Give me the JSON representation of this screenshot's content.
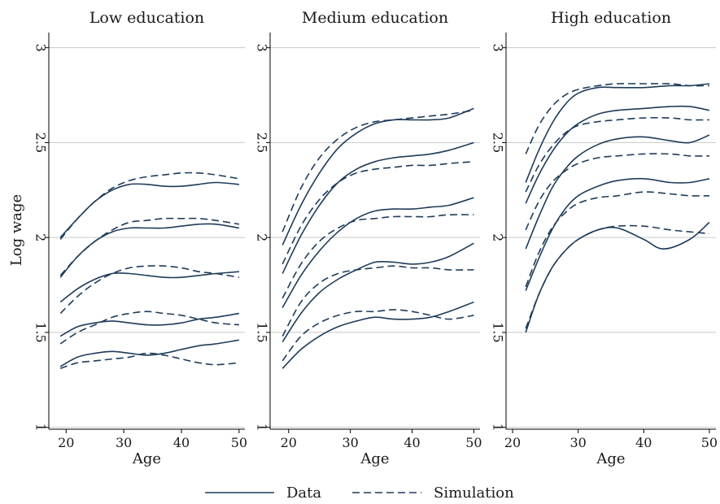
{
  "chart_data": {
    "type": "line",
    "ylabel": "Log wage",
    "xlabel": "Age",
    "ylim": [
      1,
      3
    ],
    "yticks": [
      1,
      1.5,
      2,
      2.5,
      3
    ],
    "ytick_labels": [
      "1",
      "1.5",
      "2",
      "2.5",
      "3"
    ],
    "grid": true,
    "legend": {
      "position": "bottom",
      "entries": [
        {
          "label": "Data",
          "style": "solid"
        },
        {
          "label": "Simulation",
          "style": "dashed"
        }
      ]
    },
    "line_color": "#1f3c5a",
    "panels": [
      {
        "title": "Low education",
        "xlim": [
          17,
          51
        ],
        "xticks": [
          20,
          30,
          40,
          50
        ],
        "xtick_labels": [
          "20",
          "30",
          "40",
          "50"
        ],
        "series": [
          {
            "style": "solid",
            "x": [
              19,
              22,
              25,
              28,
              31,
              34,
              37,
              40,
              43,
              46,
              50
            ],
            "y": [
              2.0,
              2.1,
              2.19,
              2.25,
              2.28,
              2.28,
              2.27,
              2.27,
              2.28,
              2.29,
              2.28
            ]
          },
          {
            "style": "dashed",
            "x": [
              19,
              22,
              25,
              28,
              31,
              34,
              37,
              40,
              43,
              46,
              50
            ],
            "y": [
              1.99,
              2.1,
              2.19,
              2.26,
              2.3,
              2.32,
              2.33,
              2.34,
              2.34,
              2.33,
              2.31
            ]
          },
          {
            "style": "solid",
            "x": [
              19,
              22,
              25,
              28,
              31,
              34,
              37,
              40,
              43,
              46,
              50
            ],
            "y": [
              1.79,
              1.9,
              1.98,
              2.03,
              2.05,
              2.05,
              2.05,
              2.06,
              2.07,
              2.07,
              2.05
            ]
          },
          {
            "style": "dashed",
            "x": [
              19,
              22,
              25,
              28,
              31,
              34,
              37,
              40,
              43,
              46,
              50
            ],
            "y": [
              1.8,
              1.9,
              1.98,
              2.04,
              2.08,
              2.09,
              2.1,
              2.1,
              2.1,
              2.09,
              2.07
            ]
          },
          {
            "style": "solid",
            "x": [
              19,
              22,
              25,
              28,
              31,
              34,
              37,
              40,
              43,
              46,
              50
            ],
            "y": [
              1.66,
              1.73,
              1.78,
              1.81,
              1.81,
              1.8,
              1.79,
              1.79,
              1.8,
              1.81,
              1.82
            ]
          },
          {
            "style": "dashed",
            "x": [
              19,
              22,
              25,
              28,
              31,
              34,
              37,
              40,
              43,
              46,
              50
            ],
            "y": [
              1.6,
              1.69,
              1.76,
              1.81,
              1.84,
              1.85,
              1.85,
              1.84,
              1.82,
              1.81,
              1.79
            ]
          },
          {
            "style": "solid",
            "x": [
              19,
              22,
              25,
              28,
              31,
              34,
              37,
              40,
              43,
              46,
              50
            ],
            "y": [
              1.48,
              1.53,
              1.55,
              1.56,
              1.55,
              1.54,
              1.54,
              1.55,
              1.57,
              1.58,
              1.6
            ]
          },
          {
            "style": "dashed",
            "x": [
              19,
              22,
              25,
              28,
              31,
              34,
              37,
              40,
              43,
              46,
              50
            ],
            "y": [
              1.44,
              1.5,
              1.54,
              1.58,
              1.6,
              1.61,
              1.6,
              1.59,
              1.57,
              1.55,
              1.54
            ]
          },
          {
            "style": "solid",
            "x": [
              19,
              22,
              25,
              28,
              31,
              34,
              37,
              40,
              43,
              46,
              50
            ],
            "y": [
              1.32,
              1.37,
              1.39,
              1.4,
              1.39,
              1.38,
              1.39,
              1.41,
              1.43,
              1.44,
              1.46
            ]
          },
          {
            "style": "dashed",
            "x": [
              19,
              22,
              25,
              28,
              31,
              34,
              37,
              40,
              43,
              46,
              50
            ],
            "y": [
              1.31,
              1.34,
              1.35,
              1.36,
              1.37,
              1.39,
              1.38,
              1.36,
              1.34,
              1.33,
              1.34
            ]
          }
        ]
      },
      {
        "title": "Medium education",
        "xlim": [
          17,
          51
        ],
        "xticks": [
          20,
          30,
          40,
          50
        ],
        "xtick_labels": [
          "20",
          "30",
          "40",
          "50"
        ],
        "series": [
          {
            "style": "solid",
            "x": [
              19,
              22,
              25,
              28,
              31,
              34,
              37,
              40,
              43,
              46,
              50
            ],
            "y": [
              1.96,
              2.17,
              2.34,
              2.47,
              2.55,
              2.6,
              2.62,
              2.62,
              2.62,
              2.63,
              2.68
            ]
          },
          {
            "style": "dashed",
            "x": [
              19,
              22,
              25,
              28,
              31,
              34,
              37,
              40,
              43,
              46,
              50
            ],
            "y": [
              2.03,
              2.26,
              2.42,
              2.52,
              2.58,
              2.61,
              2.62,
              2.63,
              2.64,
              2.65,
              2.67
            ]
          },
          {
            "style": "solid",
            "x": [
              19,
              22,
              25,
              28,
              31,
              34,
              37,
              40,
              43,
              46,
              50
            ],
            "y": [
              1.81,
              2.01,
              2.17,
              2.29,
              2.36,
              2.4,
              2.42,
              2.43,
              2.44,
              2.46,
              2.5
            ]
          },
          {
            "style": "dashed",
            "x": [
              19,
              22,
              25,
              28,
              31,
              34,
              37,
              40,
              43,
              46,
              50
            ],
            "y": [
              1.86,
              2.06,
              2.2,
              2.29,
              2.34,
              2.36,
              2.37,
              2.38,
              2.38,
              2.39,
              2.4
            ]
          },
          {
            "style": "solid",
            "x": [
              19,
              22,
              25,
              28,
              31,
              34,
              37,
              40,
              43,
              46,
              50
            ],
            "y": [
              1.63,
              1.8,
              1.93,
              2.03,
              2.1,
              2.14,
              2.15,
              2.15,
              2.16,
              2.17,
              2.21
            ]
          },
          {
            "style": "dashed",
            "x": [
              19,
              22,
              25,
              28,
              31,
              34,
              37,
              40,
              43,
              46,
              50
            ],
            "y": [
              1.68,
              1.86,
              1.98,
              2.05,
              2.09,
              2.1,
              2.11,
              2.11,
              2.11,
              2.12,
              2.12
            ]
          },
          {
            "style": "solid",
            "x": [
              19,
              22,
              25,
              28,
              31,
              34,
              37,
              40,
              43,
              46,
              50
            ],
            "y": [
              1.45,
              1.6,
              1.71,
              1.78,
              1.83,
              1.87,
              1.87,
              1.86,
              1.87,
              1.9,
              1.97
            ]
          },
          {
            "style": "dashed",
            "x": [
              19,
              22,
              25,
              28,
              31,
              34,
              37,
              40,
              43,
              46,
              50
            ],
            "y": [
              1.48,
              1.66,
              1.76,
              1.81,
              1.83,
              1.84,
              1.85,
              1.84,
              1.84,
              1.83,
              1.83
            ]
          },
          {
            "style": "solid",
            "x": [
              19,
              22,
              25,
              28,
              31,
              34,
              37,
              40,
              43,
              46,
              50
            ],
            "y": [
              1.31,
              1.41,
              1.48,
              1.53,
              1.56,
              1.58,
              1.57,
              1.57,
              1.58,
              1.61,
              1.66
            ]
          },
          {
            "style": "dashed",
            "x": [
              19,
              22,
              25,
              28,
              31,
              34,
              37,
              40,
              43,
              46,
              50
            ],
            "y": [
              1.35,
              1.48,
              1.55,
              1.59,
              1.61,
              1.61,
              1.62,
              1.61,
              1.59,
              1.57,
              1.59
            ]
          }
        ]
      },
      {
        "title": "High education",
        "xlim": [
          19,
          51
        ],
        "xticks": [
          20,
          30,
          40,
          50
        ],
        "xtick_labels": [
          "20",
          "30",
          "40",
          "50"
        ],
        "series": [
          {
            "style": "solid",
            "x": [
              22,
              24,
              26,
              28,
              30,
              33,
              36,
              40,
              44,
              47,
              50
            ],
            "y": [
              2.29,
              2.46,
              2.6,
              2.7,
              2.76,
              2.79,
              2.79,
              2.79,
              2.8,
              2.8,
              2.81
            ]
          },
          {
            "style": "dashed",
            "x": [
              22,
              24,
              26,
              28,
              30,
              33,
              36,
              40,
              44,
              47,
              50
            ],
            "y": [
              2.44,
              2.59,
              2.69,
              2.75,
              2.78,
              2.8,
              2.81,
              2.81,
              2.81,
              2.8,
              2.8
            ]
          },
          {
            "style": "solid",
            "x": [
              22,
              24,
              26,
              28,
              30,
              33,
              36,
              40,
              44,
              47,
              50
            ],
            "y": [
              2.18,
              2.33,
              2.45,
              2.54,
              2.6,
              2.65,
              2.67,
              2.68,
              2.69,
              2.69,
              2.67
            ]
          },
          {
            "style": "dashed",
            "x": [
              22,
              24,
              26,
              28,
              30,
              33,
              36,
              40,
              44,
              47,
              50
            ],
            "y": [
              2.24,
              2.38,
              2.48,
              2.55,
              2.59,
              2.61,
              2.62,
              2.63,
              2.63,
              2.62,
              2.62
            ]
          },
          {
            "style": "solid",
            "x": [
              22,
              24,
              26,
              28,
              30,
              33,
              36,
              40,
              44,
              47,
              50
            ],
            "y": [
              1.94,
              2.11,
              2.26,
              2.36,
              2.43,
              2.49,
              2.52,
              2.53,
              2.51,
              2.5,
              2.54
            ]
          },
          {
            "style": "dashed",
            "x": [
              22,
              24,
              26,
              28,
              30,
              33,
              36,
              40,
              44,
              47,
              50
            ],
            "y": [
              2.04,
              2.19,
              2.29,
              2.35,
              2.39,
              2.42,
              2.43,
              2.44,
              2.44,
              2.43,
              2.43
            ]
          },
          {
            "style": "solid",
            "x": [
              22,
              24,
              26,
              28,
              30,
              33,
              36,
              40,
              44,
              47,
              50
            ],
            "y": [
              1.72,
              1.89,
              2.04,
              2.15,
              2.22,
              2.27,
              2.3,
              2.31,
              2.29,
              2.29,
              2.31
            ]
          },
          {
            "style": "dashed",
            "x": [
              22,
              24,
              26,
              28,
              30,
              33,
              36,
              40,
              44,
              47,
              50
            ],
            "y": [
              1.74,
              1.92,
              2.05,
              2.13,
              2.18,
              2.21,
              2.22,
              2.24,
              2.23,
              2.22,
              2.22
            ]
          },
          {
            "style": "solid",
            "x": [
              22,
              24,
              26,
              28,
              30,
              33,
              36,
              40,
              43,
              47,
              50
            ],
            "y": [
              1.5,
              1.7,
              1.84,
              1.93,
              1.99,
              2.04,
              2.05,
              1.99,
              1.94,
              1.99,
              2.08
            ]
          },
          {
            "style": "dashed",
            "x": [
              22,
              24,
              26,
              28,
              30,
              33,
              36,
              40,
              44,
              47,
              50
            ],
            "y": [
              1.52,
              1.7,
              1.84,
              1.93,
              1.99,
              2.04,
              2.06,
              2.06,
              2.04,
              2.03,
              2.02
            ]
          }
        ]
      }
    ]
  }
}
